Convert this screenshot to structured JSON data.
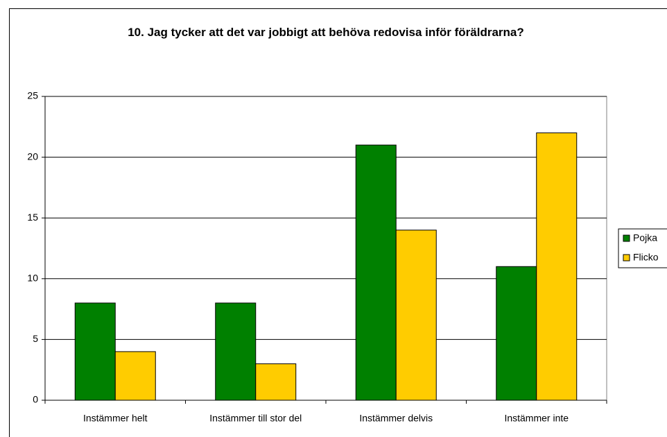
{
  "chart_data": {
    "type": "bar",
    "title": "10. Jag tycker att det var jobbigt att behöva redovisa inför föräldrarna?",
    "categories": [
      "Instämmer helt",
      "Instämmer till stor del",
      "Instämmer delvis",
      "Instämmer inte"
    ],
    "series": [
      {
        "name": "Pojka",
        "color": "#008000",
        "values": [
          8,
          8,
          21,
          11
        ]
      },
      {
        "name": "Flicko",
        "color": "#ffcc00",
        "values": [
          4,
          3,
          14,
          22
        ]
      }
    ],
    "ylim": [
      0,
      25
    ],
    "yticks": [
      0,
      5,
      10,
      15,
      20,
      25
    ],
    "grid": true,
    "legend": "right"
  }
}
